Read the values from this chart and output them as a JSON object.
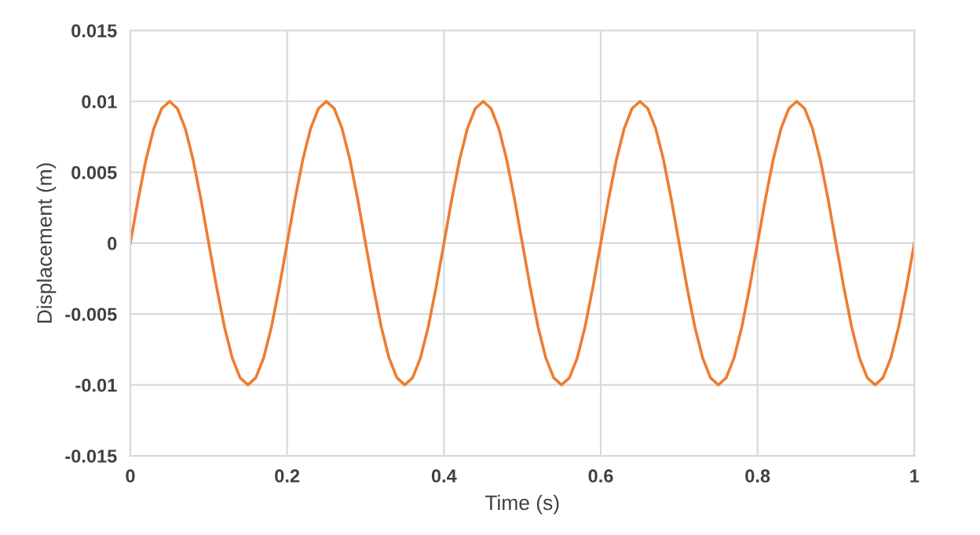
{
  "chart_data": {
    "type": "line",
    "xlabel": "Time (s)",
    "ylabel": "Displacement (m)",
    "xlim": [
      0,
      1
    ],
    "xticks": [
      0,
      0.2,
      0.4,
      0.6,
      0.8,
      1
    ],
    "ylim": [
      -0.015,
      0.015
    ],
    "yticks": [
      -0.015,
      -0.01,
      -0.005,
      0,
      0.005,
      0.01,
      0.015
    ],
    "grid": true,
    "marker": "none",
    "line_style": "solid",
    "x": [
      0,
      0.01,
      0.02,
      0.03,
      0.04,
      0.05,
      0.06,
      0.07,
      0.08,
      0.09,
      0.1,
      0.11,
      0.12,
      0.13,
      0.14,
      0.15,
      0.16,
      0.17,
      0.18,
      0.19,
      0.2,
      0.21,
      0.22,
      0.23,
      0.24,
      0.25,
      0.26,
      0.27,
      0.28,
      0.29,
      0.3,
      0.31,
      0.32,
      0.33,
      0.34,
      0.35,
      0.36,
      0.37,
      0.38,
      0.39,
      0.4,
      0.41,
      0.42,
      0.43,
      0.44,
      0.45,
      0.46,
      0.47,
      0.48,
      0.49,
      0.5,
      0.51,
      0.52,
      0.53,
      0.54,
      0.55,
      0.56,
      0.57,
      0.58,
      0.59,
      0.6,
      0.61,
      0.62,
      0.63,
      0.64,
      0.65,
      0.66,
      0.67,
      0.68,
      0.69,
      0.7,
      0.71,
      0.72,
      0.73,
      0.74,
      0.75,
      0.76,
      0.77,
      0.78,
      0.79,
      0.8,
      0.81,
      0.82,
      0.83,
      0.84,
      0.85,
      0.86,
      0.87,
      0.88,
      0.89,
      0.9,
      0.91,
      0.92,
      0.93,
      0.94,
      0.95,
      0.96,
      0.97,
      0.98,
      0.99,
      1
    ],
    "series": [
      {
        "color": "#ed7d31",
        "values": [
          0,
          0.0031,
          0.0059,
          0.0081,
          0.0095,
          0.01,
          0.0095,
          0.0081,
          0.0059,
          0.0031,
          0,
          -0.0031,
          -0.0059,
          -0.0081,
          -0.0095,
          -0.01,
          -0.0095,
          -0.0081,
          -0.0059,
          -0.0031,
          0,
          0.0031,
          0.0059,
          0.0081,
          0.0095,
          0.01,
          0.0095,
          0.0081,
          0.0059,
          0.0031,
          0,
          -0.0031,
          -0.0059,
          -0.0081,
          -0.0095,
          -0.01,
          -0.0095,
          -0.0081,
          -0.0059,
          -0.0031,
          0,
          0.0031,
          0.0059,
          0.0081,
          0.0095,
          0.01,
          0.0095,
          0.0081,
          0.0059,
          0.0031,
          0,
          -0.0031,
          -0.0059,
          -0.0081,
          -0.0095,
          -0.01,
          -0.0095,
          -0.0081,
          -0.0059,
          -0.0031,
          0,
          0.0031,
          0.0059,
          0.0081,
          0.0095,
          0.01,
          0.0095,
          0.0081,
          0.0059,
          0.0031,
          0,
          -0.0031,
          -0.0059,
          -0.0081,
          -0.0095,
          -0.01,
          -0.0095,
          -0.0081,
          -0.0059,
          -0.0031,
          0,
          0.0031,
          0.0059,
          0.0081,
          0.0095,
          0.01,
          0.0095,
          0.0081,
          0.0059,
          0.0031,
          0,
          -0.0031,
          -0.0059,
          -0.0081,
          -0.0095,
          -0.01,
          -0.0095,
          -0.0081,
          -0.0059,
          -0.0031,
          0
        ]
      }
    ]
  }
}
